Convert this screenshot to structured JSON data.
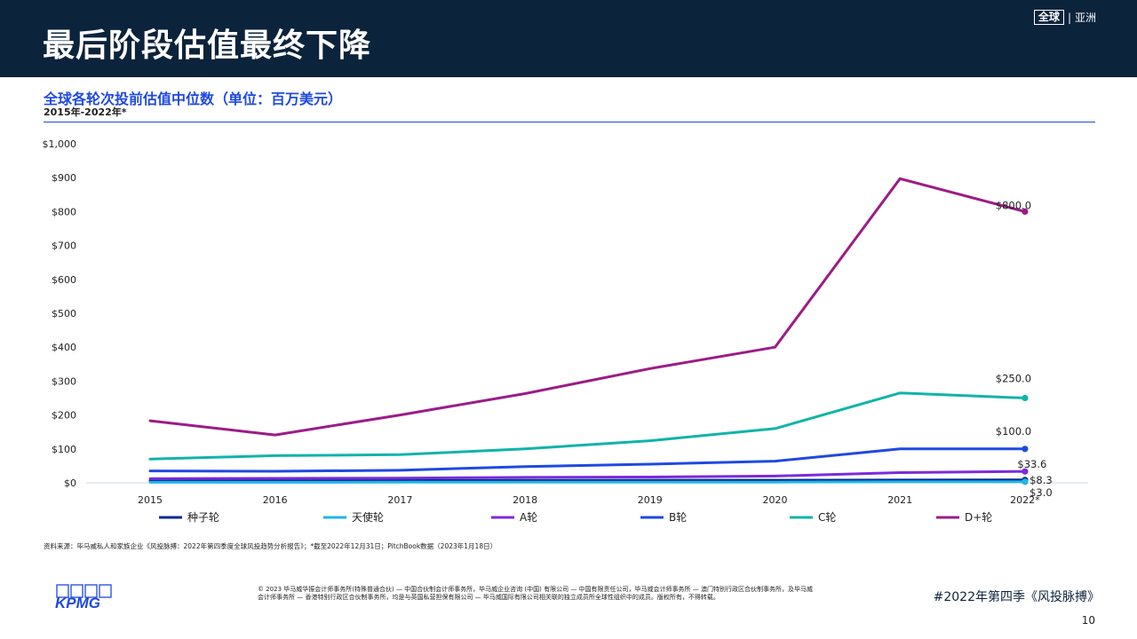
{
  "header": {
    "title": "最后阶段估值最终下降",
    "region_box": "全球",
    "region_sep": "|",
    "region_label": "亚洲"
  },
  "chart_header": {
    "title": "全球各轮次投前估值中位数（单位：百万美元）",
    "subtitle": "2015年-2022年*"
  },
  "chart_data": {
    "type": "line",
    "title": "全球各轮次投前估值中位数（单位：百万美元）",
    "subtitle": "2015年-2022年*",
    "categories": [
      "2015",
      "2016",
      "2017",
      "2018",
      "2019",
      "2020",
      "2021",
      "2022*"
    ],
    "ylim": [
      0,
      1000
    ],
    "yticks": [
      0,
      100,
      200,
      300,
      400,
      500,
      600,
      700,
      800,
      900,
      1000
    ],
    "ytick_labels": [
      "$0",
      "$100",
      "$200",
      "$300",
      "$400",
      "$500",
      "$600",
      "$700",
      "$800",
      "$900",
      "$1,000"
    ],
    "grid": false,
    "legend_position": "bottom",
    "series": [
      {
        "name": "种子轮",
        "color": "#0a2a8c",
        "values": [
          6,
          6,
          6.5,
          7,
          7.5,
          7.5,
          8,
          8.3
        ],
        "end_label": "$8.3"
      },
      {
        "name": "天使轮",
        "color": "#1fb5e8",
        "values": [
          1.5,
          1.5,
          1.8,
          2,
          2.2,
          2.2,
          2.8,
          3.0
        ],
        "end_label": "$3.0"
      },
      {
        "name": "A轮",
        "color": "#7a2bdc",
        "values": [
          12,
          13,
          14,
          16,
          17,
          20,
          30,
          33.6
        ],
        "end_label": "$33.6"
      },
      {
        "name": "B轮",
        "color": "#1e49e2",
        "values": [
          35,
          34,
          37,
          48,
          55,
          64,
          100,
          100
        ],
        "end_label": "$100.0"
      },
      {
        "name": "C轮",
        "color": "#10b4a8",
        "values": [
          70,
          80,
          83,
          100,
          124,
          160,
          265,
          250
        ],
        "end_label": "$250.0"
      },
      {
        "name": "D+轮",
        "color": "#9c1c86",
        "values": [
          183,
          141,
          200,
          263,
          337,
          400,
          897,
          800
        ],
        "end_label": "$800.0"
      }
    ]
  },
  "footer": {
    "source": "资料来源：毕马威私人和家族企业《风投脉搏：2022年第四季度全球风投趋势分析报告》；*截至2022年12月31日；PitchBook数据（2023年1月18日）",
    "logo_text": "KPMG",
    "copyright": "© 2023 毕马威华振会计师事务所(特殊普通合伙) — 中国合伙制会计师事务所，毕马威企业咨询 (中国) 有限公司 — 中国有限责任公司，毕马威会计师事务所 — 澳门特别行政区合伙制事务所，及毕马威会计师事务所 — 香港特别行政区合伙制事务所，均是与英国私营担保有限公司 — 毕马威国际有限公司相关联的独立成员所全球性组织中的成员。版权所有，不得转载。",
    "publication": "#2022年第四季《风投脉搏》",
    "page_number": "10"
  }
}
